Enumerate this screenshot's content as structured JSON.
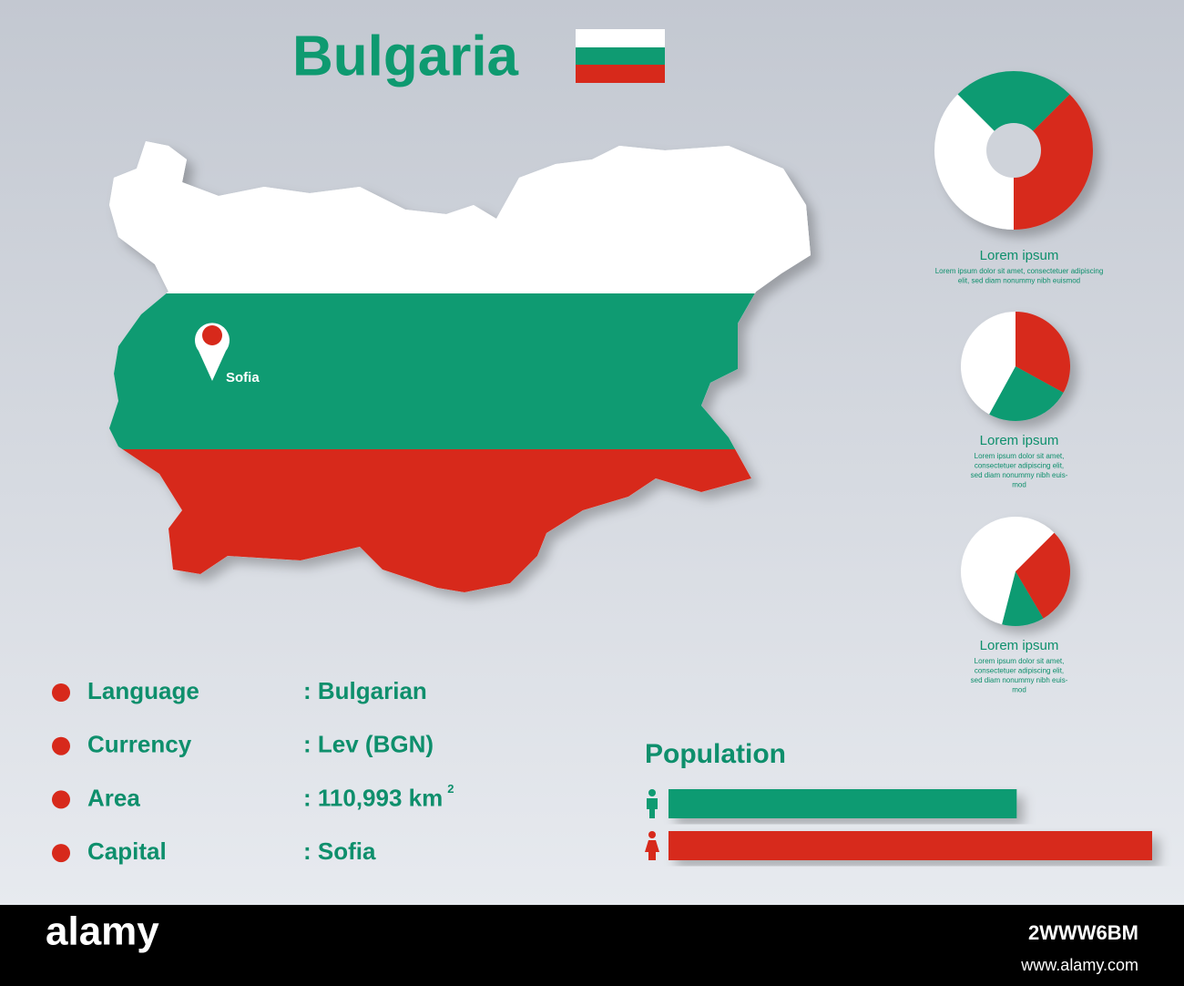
{
  "title": "Bulgaria",
  "map": {
    "capital_label": "Sofia"
  },
  "info": [
    {
      "label": "Language",
      "value": ": Bulgarian"
    },
    {
      "label": "Currency",
      "value": ": Lev (BGN)"
    },
    {
      "label": "Area",
      "value": ": 110,993  km",
      "sup": "2"
    },
    {
      "label": "Capital",
      "value": ": Sofia"
    }
  ],
  "pies": [
    {
      "title": "Lorem ipsum",
      "donut": true,
      "text": [
        "Lorem ipsum dolor sit amet, consectetuer adipiscing",
        "elit, sed diam nonummy nibh euismod"
      ],
      "segments": [
        {
          "color": "#0f9b72",
          "value": 25
        },
        {
          "color": "#d7291b",
          "value": 37.5
        },
        {
          "color": "#ffffff",
          "value": 37.5
        }
      ]
    },
    {
      "title": "Lorem ipsum",
      "donut": false,
      "text": [
        "Lorem ipsum dolor sit amet,",
        "consectetuer adipiscing elit,",
        "sed diam nonummy nibh euis-",
        "mod"
      ],
      "segments": [
        {
          "color": "#d7291b",
          "value": 33
        },
        {
          "color": "#0f9b72",
          "value": 25
        },
        {
          "color": "#ffffff",
          "value": 42
        }
      ]
    },
    {
      "title": "Lorem ipsum",
      "donut": false,
      "text": [
        "Lorem ipsum dolor sit amet,",
        "consectetuer adipiscing elit,",
        "sed diam nonummy nibh euis-",
        "mod"
      ],
      "segments": [
        {
          "color": "#d7291b",
          "value": 29
        },
        {
          "color": "#0f9b72",
          "value": 12.5
        },
        {
          "color": "#ffffff",
          "value": 58.5
        }
      ]
    }
  ],
  "population": {
    "title": "Population",
    "bars": [
      {
        "color": "#0f9b72",
        "value": 72
      },
      {
        "color": "#d7291b",
        "value": 100
      }
    ]
  },
  "footer": {
    "logo": "alamy",
    "image_id": "2WWW6BM",
    "url": "www.alamy.com"
  }
}
